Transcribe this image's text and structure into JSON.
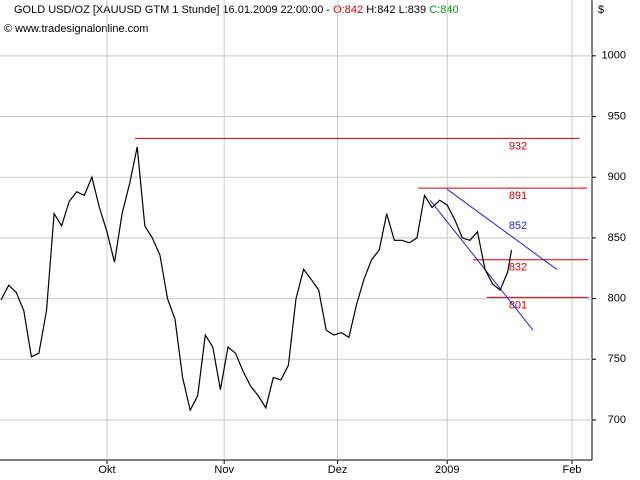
{
  "chart_data": {
    "type": "line",
    "title": "GOLD USD/OZ [XAUUSD GTM  1 Stunde] 16.01.2009 22:00:00 -",
    "ohlc": {
      "open": "O:842",
      "high": "H:842",
      "low": "L:839",
      "close": "C:840"
    },
    "subtitle": "© www.tradesignalonline.com",
    "y_axis_label": "$",
    "series": [
      {
        "name": "GOLD USD/OZ",
        "color": "#000000",
        "x": [
          2,
          4,
          6,
          8,
          10,
          12,
          14,
          16,
          18,
          20,
          22,
          24,
          26,
          28,
          30,
          32,
          34,
          36,
          38,
          40,
          42,
          44,
          46,
          48,
          50,
          52,
          54,
          56,
          58,
          60,
          62,
          64,
          66,
          68,
          70,
          72,
          74,
          76,
          78,
          80,
          82,
          84,
          86,
          88,
          90,
          92,
          94,
          96,
          98,
          100,
          102,
          104,
          106,
          108,
          110,
          112,
          114,
          116,
          118,
          120,
          122,
          124,
          126,
          128,
          130,
          132,
          134,
          136,
          137
        ],
        "values": [
          799,
          811,
          805,
          790,
          752,
          755,
          790,
          870,
          860,
          880,
          888,
          885,
          900,
          875,
          855,
          830,
          870,
          895,
          925,
          860,
          850,
          836,
          800,
          783,
          735,
          708,
          720,
          770,
          760,
          725,
          760,
          755,
          740,
          728,
          720,
          710,
          735,
          733,
          745,
          800,
          824,
          816,
          807,
          774,
          770,
          772,
          768,
          795,
          816,
          832,
          840,
          870,
          848,
          848,
          846,
          850,
          885,
          875,
          881,
          877,
          865,
          850,
          848,
          855,
          824,
          812,
          807,
          822,
          840
        ]
      }
    ],
    "levels": [
      {
        "value": 932,
        "x": [
          37.4,
          155
        ]
      },
      {
        "value": 891,
        "x": [
          112.3,
          157
        ]
      },
      {
        "value": 832,
        "x": [
          126.8,
          157.3
        ]
      },
      {
        "value": 801,
        "x": [
          130.5,
          157.3
        ]
      }
    ],
    "level_color": "#cc0000",
    "trend_lines": [
      {
        "label": "852",
        "x": [
          120,
          149
        ],
        "values": [
          890,
          824
        ]
      },
      {
        "x": [
          115.5,
          142.7
        ],
        "values": [
          881,
          774
        ]
      }
    ],
    "trend_color": "#2222cc",
    "xlim": [
      1.7,
      158.3
    ],
    "xticks": [
      {
        "value": 30,
        "label": "Okt"
      },
      {
        "value": 61,
        "label": "Nov"
      },
      {
        "value": 91,
        "label": "Dez"
      },
      {
        "value": 120,
        "label": "2009"
      },
      {
        "value": 153,
        "label": "Feb"
      }
    ],
    "ylim": [
      667,
      1046
    ],
    "yticks": [
      700,
      750,
      800,
      850,
      900,
      950,
      1000
    ],
    "grid": true
  }
}
